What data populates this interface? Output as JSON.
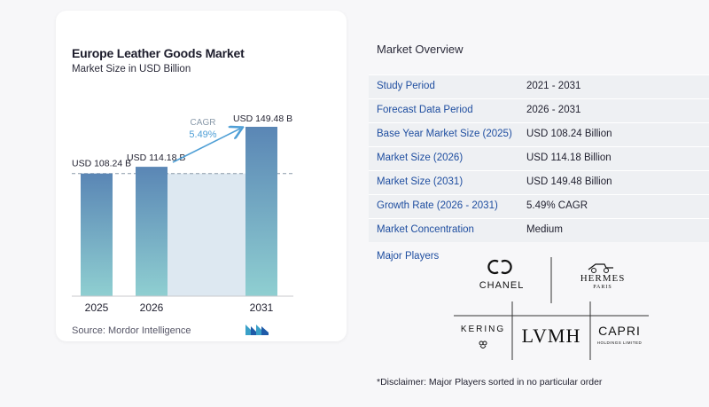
{
  "chart_card": {
    "title": "Europe Leather Goods Market",
    "subtitle": "Market Size in USD Billion",
    "source": "Source:  Mordor Intelligence"
  },
  "chart_data": {
    "type": "bar",
    "title": "Europe Leather Goods Market",
    "subtitle": "Market Size in USD Billion",
    "categories": [
      "2025",
      "2026",
      "2031"
    ],
    "values": [
      108.24,
      114.18,
      149.48
    ],
    "value_labels": [
      "USD 108.24 B",
      "USD 114.18 B",
      "USD 149.48 B"
    ],
    "cagr_label": "CAGR",
    "cagr_value": "5.49%",
    "ylim": [
      0,
      149.48
    ],
    "grid": false,
    "colors": {
      "bar_top": "#5a86b5",
      "bar_bottom": "#8fcfd1",
      "shade": "#dde8f1",
      "dashed": "#8a9aaa",
      "arrow": "#4f9fd6"
    }
  },
  "overview": {
    "title": "Market Overview",
    "rows": [
      {
        "key": "Study Period",
        "value": "2021 - 2031"
      },
      {
        "key": "Forecast Data Period",
        "value": "2026 - 2031"
      },
      {
        "key": "Base Year Market Size (2025)",
        "value": "USD 108.24 Billion"
      },
      {
        "key": "Market Size (2026)",
        "value": "USD 114.18 Billion"
      },
      {
        "key": "Market Size (2031)",
        "value": "USD 149.48 Billion"
      },
      {
        "key": "Growth Rate (2026 - 2031)",
        "value": "5.49% CAGR"
      },
      {
        "key": "Market Concentration",
        "value": "Medium"
      }
    ],
    "players_label": "Major Players",
    "players": {
      "chanel": "CHANEL",
      "hermes": "HERMES",
      "hermes_sub": "PARIS",
      "kering": "KERING",
      "lvmh": "LVMH",
      "capri": "CAPRI",
      "capri_sub": "HOLDINGS LIMITED"
    },
    "disclaimer": "*Disclaimer: Major Players sorted in no particular order"
  }
}
